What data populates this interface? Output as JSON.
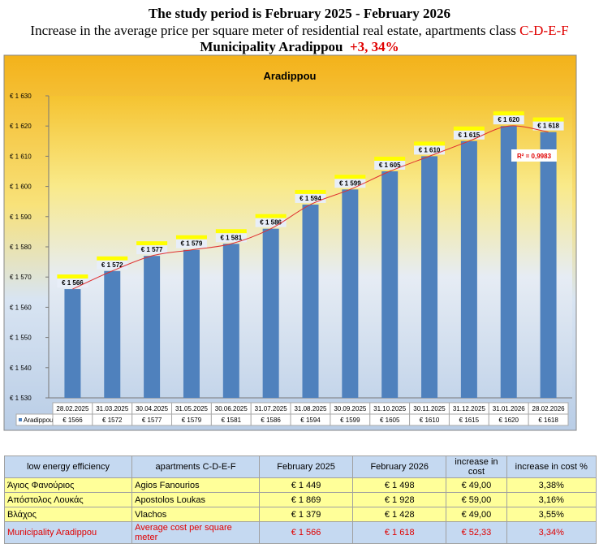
{
  "header": {
    "line1": "The study period is February 2025 - February 2026",
    "line2": "Increase in the average price per square meter of residential real estate, apartments class ",
    "line2_class": "C-D-E-F",
    "line3": "Municipality Aradippou",
    "line3_change": "+3, 34%"
  },
  "chart_data": {
    "type": "bar",
    "title": "Aradippou",
    "series_name": "Aradippou",
    "categories": [
      "28.02.2025",
      "31.03.2025",
      "30.04.2025",
      "31.05.2025",
      "30.06.2025",
      "31.07.2025",
      "31.08.2025",
      "30.09.2025",
      "31.10.2025",
      "30.11.2025",
      "31.12.2025",
      "31.01.2026",
      "28.02.2026"
    ],
    "values": [
      1566,
      1572,
      1577,
      1579,
      1581,
      1586,
      1594,
      1599,
      1605,
      1610,
      1615,
      1620,
      1618
    ],
    "value_labels": [
      "€ 1 566",
      "€ 1 572",
      "€ 1 577",
      "€ 1 579",
      "€ 1 581",
      "€ 1 586",
      "€ 1 594",
      "€ 1 599",
      "€ 1 605",
      "€ 1 610",
      "€ 1 615",
      "€ 1 620",
      "€ 1 618"
    ],
    "table_labels": [
      "€ 1566",
      "€ 1572",
      "€ 1577",
      "€ 1579",
      "€ 1581",
      "€ 1586",
      "€ 1594",
      "€ 1599",
      "€ 1605",
      "€ 1610",
      "€ 1615",
      "€ 1620",
      "€ 1618"
    ],
    "ylim": [
      1530,
      1630
    ],
    "yticks": [
      1530,
      1540,
      1550,
      1560,
      1570,
      1580,
      1590,
      1600,
      1610,
      1620,
      1630
    ],
    "ytick_prefix": "€ ",
    "trendline": "polynomial",
    "r2_label": "R² = 0,9983",
    "colors": {
      "bar": "#4f81bd",
      "trend": "#e03030"
    }
  },
  "table": {
    "headers": [
      "low energy efficiency",
      "apartments C-D-E-F",
      "February 2025",
      "February 2026",
      "increase in cost",
      "increase in cost %"
    ],
    "rows": [
      [
        "Άγιος Φανούριος",
        "Agios Fanourios",
        "€ 1 449",
        "€ 1 498",
        "€ 49,00",
        "3,38%"
      ],
      [
        "Απόστολος Λουκάς",
        "Apostolos Loukas",
        "€ 1 869",
        "€ 1 928",
        "€ 59,00",
        "3,16%"
      ],
      [
        "Βλάχος",
        "Vlachos",
        "€ 1 379",
        "€ 1 428",
        "€ 49,00",
        "3,55%"
      ]
    ],
    "total": [
      "Municipality Aradippou",
      "Average cost per square meter",
      "€ 1 566",
      "€ 1 618",
      "€ 52,33",
      "3,34%"
    ]
  }
}
